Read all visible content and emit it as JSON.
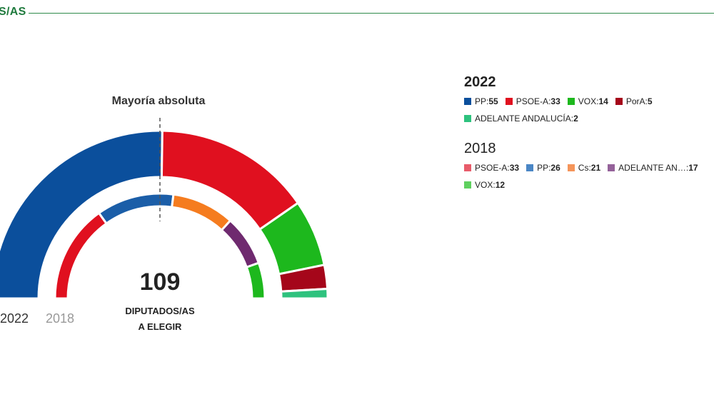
{
  "header": {
    "title": "S/AS"
  },
  "chart_data": {
    "type": "pie",
    "majority_label": "Mayoría absoluta",
    "total_seats": "109",
    "total_label_line1": "DIPUTADOS/AS",
    "total_label_line2": "A ELEGIR",
    "series": [
      {
        "year": "2022",
        "items": [
          {
            "party": "PP",
            "seats": 55,
            "color": "#0b4f9c"
          },
          {
            "party": "PSOE-A",
            "seats": 33,
            "color": "#e0101f"
          },
          {
            "party": "VOX",
            "seats": 14,
            "color": "#1db81d"
          },
          {
            "party": "PorA",
            "seats": 5,
            "color": "#a5061a"
          },
          {
            "party": "ADELANTE ANDALUCÍA",
            "seats": 2,
            "color": "#2ec27e"
          }
        ]
      },
      {
        "year": "2018",
        "items": [
          {
            "party": "PSOE-A",
            "seats": 33,
            "color": "#e0101f"
          },
          {
            "party": "PP",
            "seats": 26,
            "color": "#1b5ea8"
          },
          {
            "party": "Cs",
            "seats": 21,
            "color": "#f57c1f"
          },
          {
            "party": "ADELANTE ANDALUCÍA",
            "seats": 17,
            "color": "#6f2a6f"
          },
          {
            "party": "VOX",
            "seats": 12,
            "color": "#1db81d"
          }
        ]
      }
    ]
  },
  "legend": {
    "groups": [
      {
        "year": "2022",
        "items": [
          {
            "label": "PP",
            "value": "55",
            "color": "#0b4f9c"
          },
          {
            "label": "PSOE-A",
            "value": "33",
            "color": "#e0101f"
          },
          {
            "label": "VOX",
            "value": "14",
            "color": "#1db81d"
          },
          {
            "label": "PorA",
            "value": "5",
            "color": "#a5061a"
          },
          {
            "label": "ADELANTE ANDALUCÍA",
            "value": "2",
            "color": "#2ec27e"
          }
        ]
      },
      {
        "year": "2018",
        "items": [
          {
            "label": "PSOE-A",
            "value": "33",
            "color": "#e85c6a"
          },
          {
            "label": "PP",
            "value": "26",
            "color": "#4a86c5"
          },
          {
            "label": "Cs",
            "value": "21",
            "color": "#f5955a"
          },
          {
            "label": "ADELANTE AN…",
            "value": "17",
            "color": "#95629a"
          },
          {
            "label": "VOX",
            "value": "12",
            "color": "#5fd05f"
          }
        ]
      }
    ]
  }
}
